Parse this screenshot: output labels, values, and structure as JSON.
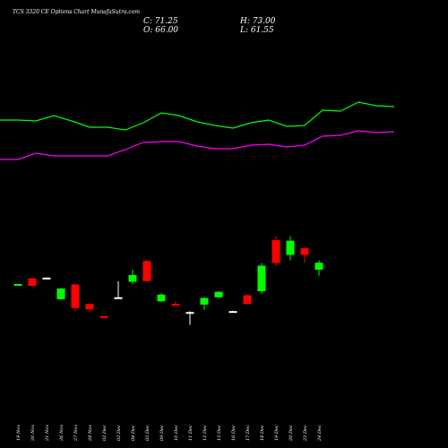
{
  "header": {
    "title": "TCS 3320 CE Options  Chart MunafaSutra.com",
    "close_label": "C: 71.25",
    "high_label": "H: 73.00",
    "open_label": "O: 66.00",
    "low_label": "L: 61.55"
  },
  "colors": {
    "background": "#000000",
    "up": "#00ff00",
    "down": "#ff0000",
    "neutral": "#ffffff",
    "band_upper": "#00ff00",
    "band_lower": "#ff00ff"
  },
  "chart_data": {
    "type": "candlestick",
    "title": "TCS 3320 CE Options  Chart MunafaSutra.com",
    "categories": [
      "19 Nov",
      "20 Nov",
      "21 Nov",
      "26 Nov",
      "27 Nov",
      "28 Nov",
      "02 Dec",
      "03 Dec",
      "04 Dec",
      "05 Dec",
      "09 Dec",
      "10 Dec",
      "11 Dec",
      "12 Dec",
      "13 Dec",
      "16 Dec",
      "17 Dec",
      "18 Dec",
      "19 Dec",
      "20 Dec",
      "23 Dec",
      "24 Dec"
    ],
    "ylim": [
      0,
      100
    ],
    "candles": [
      {
        "date": "19 Nov",
        "open": 55.0,
        "high": 55.6,
        "low": 54.5,
        "close": 55.4,
        "color": "up"
      },
      {
        "date": "20 Nov",
        "open": 59.5,
        "high": 60.0,
        "low": 53.8,
        "close": 54.0,
        "color": "down"
      },
      {
        "date": "21 Nov",
        "open": 60.0,
        "high": 60.3,
        "low": 59.6,
        "close": 60.1,
        "color": "neutral"
      },
      {
        "date": "26 Nov",
        "open": 44.0,
        "high": 52.5,
        "low": 43.5,
        "close": 52.0,
        "color": "up"
      },
      {
        "date": "27 Nov",
        "open": 55.0,
        "high": 55.4,
        "low": 35.0,
        "close": 37.5,
        "color": "down"
      },
      {
        "date": "28 Nov",
        "open": 40.5,
        "high": 41.0,
        "low": 34.5,
        "close": 36.5,
        "color": "down"
      },
      {
        "date": "02 Dec",
        "open": 31.5,
        "high": 31.8,
        "low": 29.5,
        "close": 30.5,
        "color": "down"
      },
      {
        "date": "03 Dec",
        "open": 45.0,
        "high": 57.5,
        "low": 44.5,
        "close": 45.5,
        "color": "neutral"
      },
      {
        "date": "04 Dec",
        "open": 57.0,
        "high": 66.0,
        "low": 55.5,
        "close": 62.0,
        "color": "up"
      },
      {
        "date": "05 Dec",
        "open": 72.5,
        "high": 73.0,
        "low": 57.0,
        "close": 57.5,
        "color": "down"
      },
      {
        "date": "09 Dec",
        "open": 42.5,
        "high": 48.5,
        "low": 42.0,
        "close": 47.5,
        "color": "up"
      },
      {
        "date": "10 Dec",
        "open": 40.5,
        "high": 42.5,
        "low": 39.5,
        "close": 39.8,
        "color": "down"
      },
      {
        "date": "11 Dec",
        "open": 34.0,
        "high": 35.0,
        "low": 25.0,
        "close": 34.5,
        "color": "neutral"
      },
      {
        "date": "12 Dec",
        "open": 40.0,
        "high": 45.5,
        "low": 36.0,
        "close": 45.0,
        "color": "up"
      },
      {
        "date": "13 Dec",
        "open": 45.5,
        "high": 50.0,
        "low": 45.0,
        "close": 49.5,
        "color": "up"
      },
      {
        "date": "16 Dec",
        "open": 35.0,
        "high": 35.5,
        "low": 34.5,
        "close": 35.2,
        "color": "neutral"
      },
      {
        "date": "17 Dec",
        "open": 47.0,
        "high": 47.3,
        "low": 40.0,
        "close": 40.5,
        "color": "down"
      },
      {
        "date": "18 Dec",
        "open": 50.0,
        "high": 71.0,
        "low": 48.0,
        "close": 69.0,
        "color": "up"
      },
      {
        "date": "19 Dec",
        "open": 88.0,
        "high": 91.0,
        "low": 69.0,
        "close": 71.0,
        "color": "down"
      },
      {
        "date": "20 Dec",
        "open": 77.0,
        "high": 91.0,
        "low": 73.0,
        "close": 87.5,
        "color": "up"
      },
      {
        "date": "23 Dec",
        "open": 82.0,
        "high": 82.5,
        "low": 71.0,
        "close": 77.0,
        "color": "down"
      },
      {
        "date": "24 Dec",
        "open": 66.0,
        "high": 73.0,
        "low": 61.5,
        "close": 71.2,
        "color": "up"
      }
    ],
    "upper_band": [
      226,
      226,
      225,
      231,
      225,
      218,
      218,
      215,
      223,
      234,
      231,
      224,
      220,
      217,
      223,
      226,
      219,
      220,
      237,
      236,
      246,
      242,
      241
    ],
    "lower_band": [
      182,
      182,
      189,
      186,
      186,
      186,
      186,
      193,
      201,
      202,
      202,
      197,
      194,
      194,
      198,
      199,
      196,
      198,
      208,
      209,
      214,
      212,
      213
    ]
  }
}
